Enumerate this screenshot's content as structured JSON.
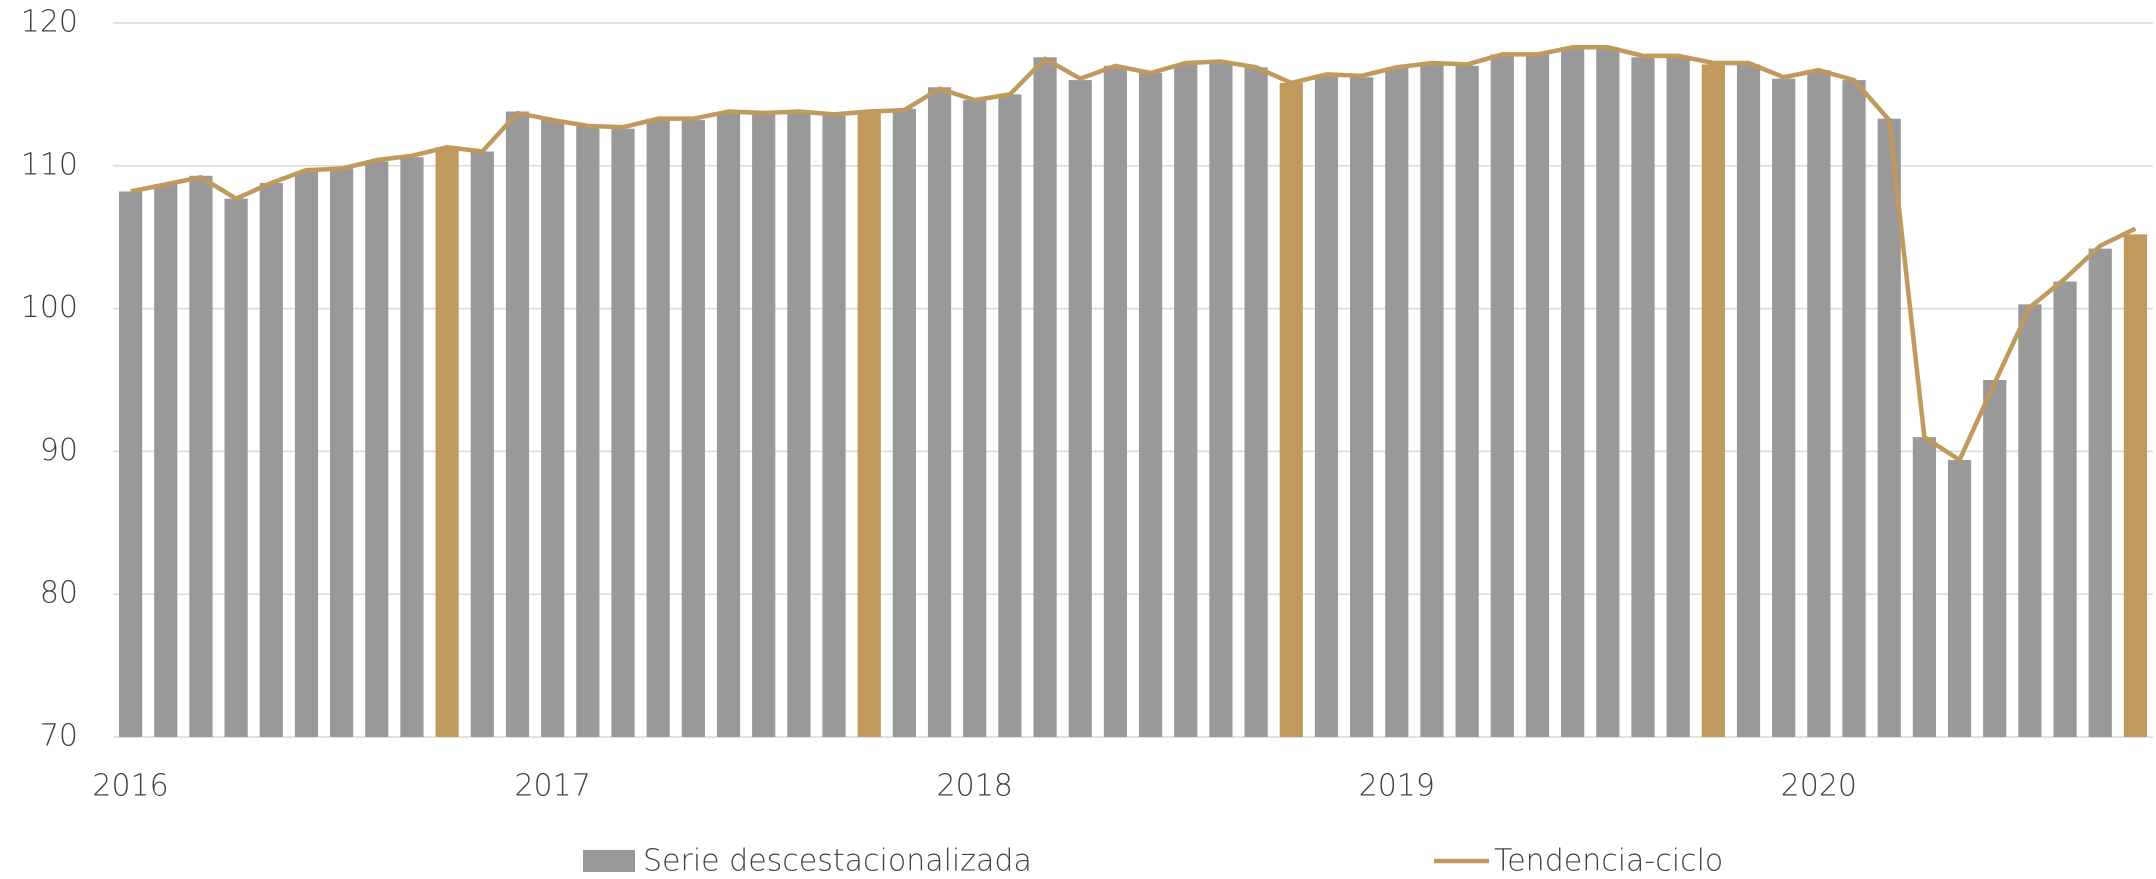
{
  "chart_data": {
    "type": "bar",
    "categories": [
      "2016",
      null,
      null,
      null,
      null,
      null,
      null,
      null,
      null,
      null,
      null,
      null,
      "2017",
      null,
      null,
      null,
      null,
      null,
      null,
      null,
      null,
      null,
      null,
      null,
      "2018",
      null,
      null,
      null,
      null,
      null,
      null,
      null,
      null,
      null,
      null,
      null,
      "2019",
      null,
      null,
      null,
      null,
      null,
      null,
      null,
      null,
      null,
      null,
      null,
      "2020",
      null,
      null,
      null,
      null,
      null,
      null,
      null,
      null,
      null
    ],
    "series": [
      {
        "name": "Serie descestacionalizada",
        "type": "bar",
        "color": "#999999",
        "colors": [
          "#999999",
          "#999999",
          "#999999",
          "#999999",
          "#999999",
          "#999999",
          "#999999",
          "#999999",
          "#999999",
          "#bf9a5c",
          "#999999",
          "#999999",
          "#999999",
          "#999999",
          "#999999",
          "#999999",
          "#999999",
          "#999999",
          "#999999",
          "#999999",
          "#999999",
          "#bf9a5c",
          "#999999",
          "#999999",
          "#999999",
          "#999999",
          "#999999",
          "#999999",
          "#999999",
          "#999999",
          "#999999",
          "#999999",
          "#999999",
          "#bf9a5c",
          "#999999",
          "#999999",
          "#999999",
          "#999999",
          "#999999",
          "#999999",
          "#999999",
          "#999999",
          "#999999",
          "#999999",
          "#999999",
          "#bf9a5c",
          "#999999",
          "#999999",
          "#999999",
          "#999999",
          "#999999",
          "#999999",
          "#999999",
          "#999999",
          "#999999",
          "#999999",
          "#999999",
          "#bf9a5c"
        ],
        "values": [
          108.2,
          108.7,
          109.3,
          107.7,
          108.8,
          109.6,
          109.8,
          110.3,
          110.6,
          111.3,
          111.0,
          113.8,
          113.2,
          112.8,
          112.6,
          113.3,
          113.2,
          113.8,
          113.6,
          113.7,
          113.5,
          113.8,
          114.0,
          115.5,
          114.6,
          115.0,
          117.6,
          116.0,
          117.0,
          116.5,
          117.1,
          117.2,
          116.9,
          115.8,
          116.3,
          116.2,
          116.9,
          117.1,
          117.0,
          117.8,
          117.8,
          118.3,
          118.3,
          117.6,
          117.6,
          117.1,
          117.1,
          116.1,
          116.7,
          116.0,
          113.3,
          91.0,
          89.4,
          95.0,
          100.3,
          101.9,
          104.2,
          105.2
        ]
      },
      {
        "name": "Tendencia-ciclo",
        "type": "line",
        "color": "#bf9a5c",
        "values": [
          108.2,
          108.7,
          109.2,
          107.7,
          108.8,
          109.7,
          109.8,
          110.4,
          110.7,
          111.3,
          111.0,
          113.7,
          113.2,
          112.8,
          112.7,
          113.3,
          113.3,
          113.8,
          113.7,
          113.8,
          113.6,
          113.8,
          113.9,
          115.4,
          114.6,
          115.0,
          117.5,
          116.1,
          117.0,
          116.5,
          117.2,
          117.3,
          116.9,
          115.8,
          116.4,
          116.3,
          116.9,
          117.2,
          117.1,
          117.8,
          117.8,
          118.3,
          118.3,
          117.7,
          117.7,
          117.2,
          117.2,
          116.2,
          116.7,
          116.0,
          113.2,
          91.0,
          89.4,
          94.8,
          100.1,
          102.1,
          104.4,
          105.6
        ]
      }
    ],
    "ylim": [
      70,
      120
    ],
    "yticks": [
      70,
      80,
      90,
      100,
      110,
      120
    ],
    "grid": true,
    "legend": "bottom"
  }
}
